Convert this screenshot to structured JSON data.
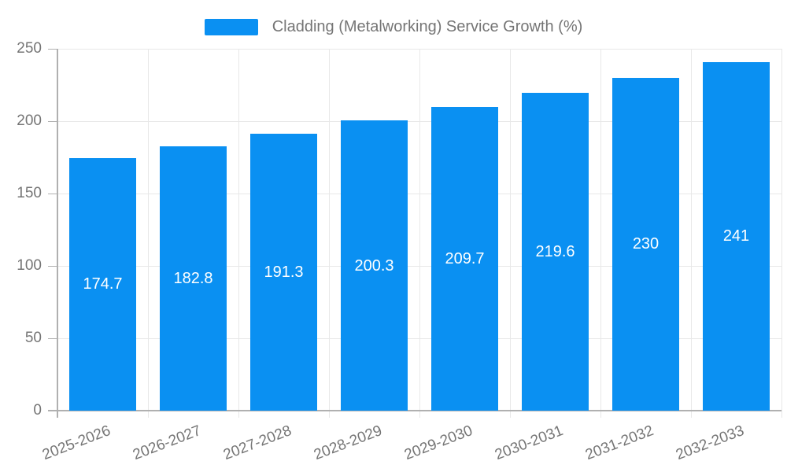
{
  "chart_data": {
    "type": "bar",
    "title": "Cladding (Metalworking) Service Growth (%)",
    "legend": {
      "label": "Cladding (Metalworking) Service Growth (%)",
      "position": "top-center"
    },
    "categories": [
      "2025-2026",
      "2026-2027",
      "2027-2028",
      "2028-2029",
      "2029-2030",
      "2030-2031",
      "2031-2032",
      "2032-2033"
    ],
    "values": [
      174.7,
      182.8,
      191.3,
      200.3,
      209.7,
      219.6,
      230,
      241
    ],
    "xlabel": "",
    "ylabel": "",
    "ylim": [
      0,
      250
    ],
    "yticks": [
      0,
      50,
      100,
      150,
      200,
      250
    ],
    "grid": true,
    "value_labels_position": "inside-center",
    "x_label_rotation_deg": -21,
    "colors": {
      "bar": "#0a90f2",
      "grid": "#e8e8e8",
      "axis": "#b0b0b0",
      "tick_text": "#757575",
      "value_label": "#ffffff",
      "background": "#ffffff"
    }
  }
}
